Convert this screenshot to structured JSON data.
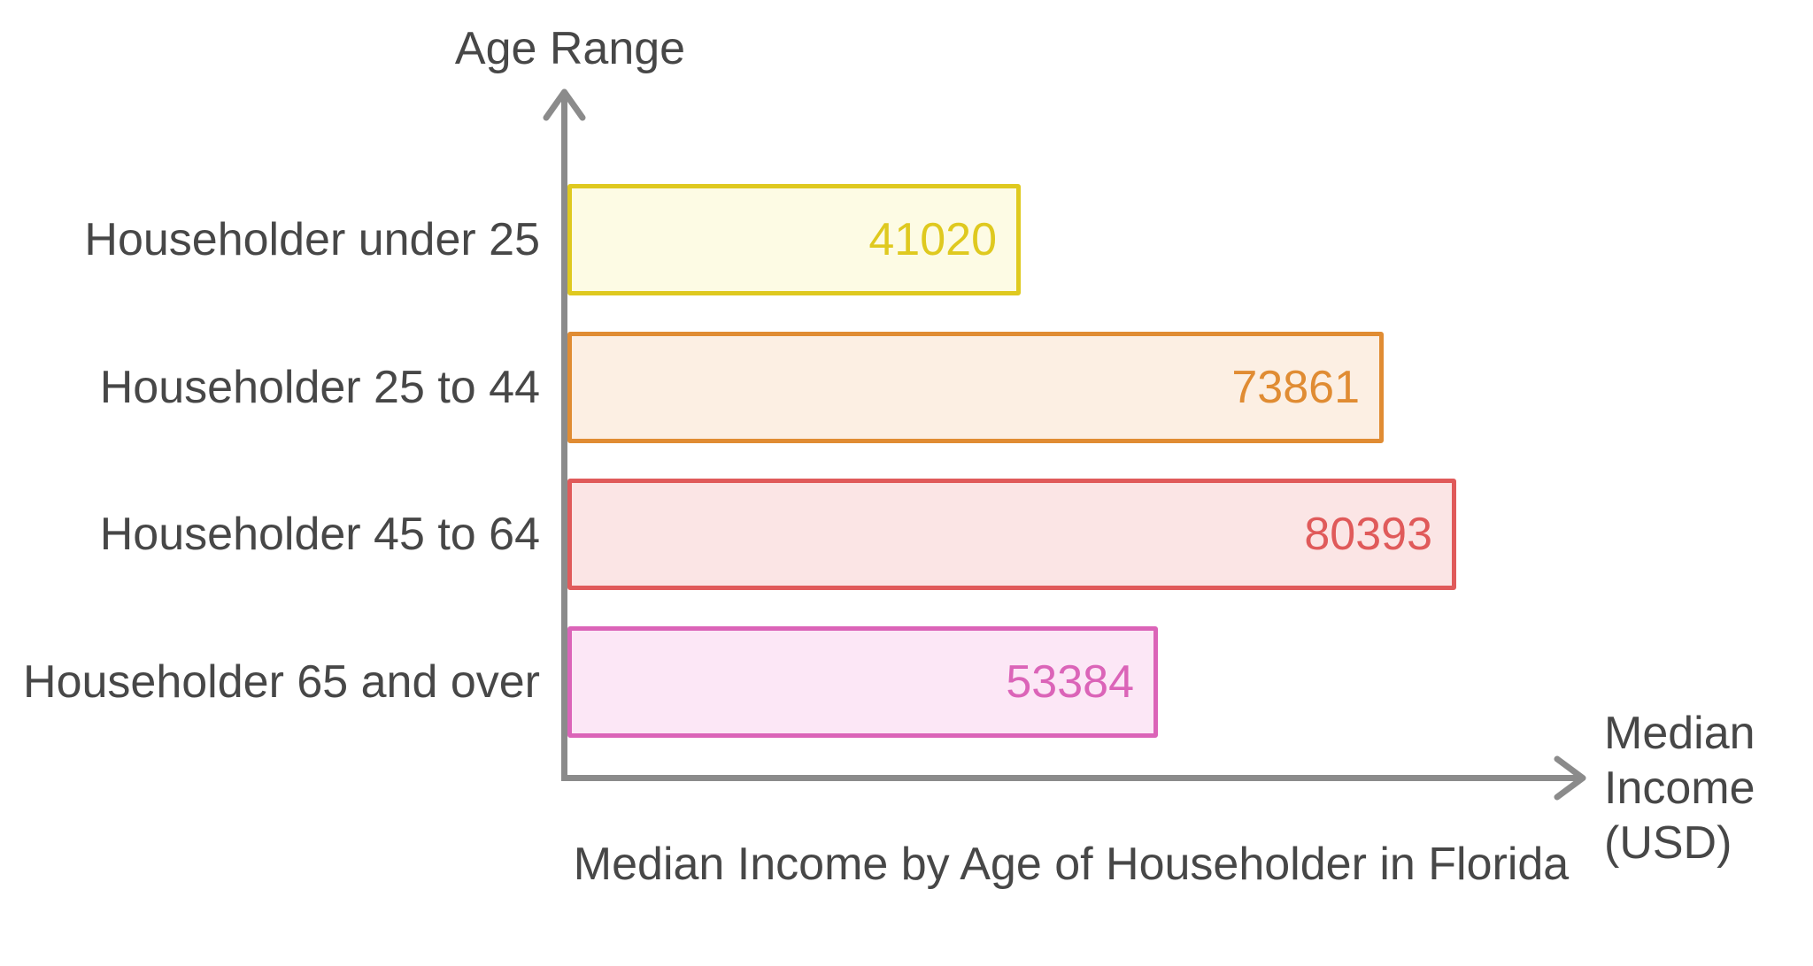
{
  "chart_data": {
    "type": "bar",
    "orientation": "horizontal",
    "title": "Median Income by Age of Householder in Florida",
    "xlabel": "Median Income (USD)",
    "ylabel": "Age Range",
    "categories": [
      "Householder under 25",
      "Householder 25 to 44",
      "Householder 45 to 64",
      "Householder 65 and over"
    ],
    "values": [
      41020,
      73861,
      80393,
      53384
    ],
    "xlim": [
      0,
      80393
    ],
    "grid": false,
    "legend": false,
    "value_label_position": "inside-end",
    "bar_colors": [
      {
        "fill": "#FDFBE4",
        "stroke": "#DFC91F"
      },
      {
        "fill": "#FCEFE3",
        "stroke": "#E08C33"
      },
      {
        "fill": "#FBE5E5",
        "stroke": "#E05A5A"
      },
      {
        "fill": "#FCE7F6",
        "stroke": "#DB64B8"
      }
    ]
  },
  "colors": {
    "axis": "#8B8B8B",
    "text": "#474747"
  }
}
